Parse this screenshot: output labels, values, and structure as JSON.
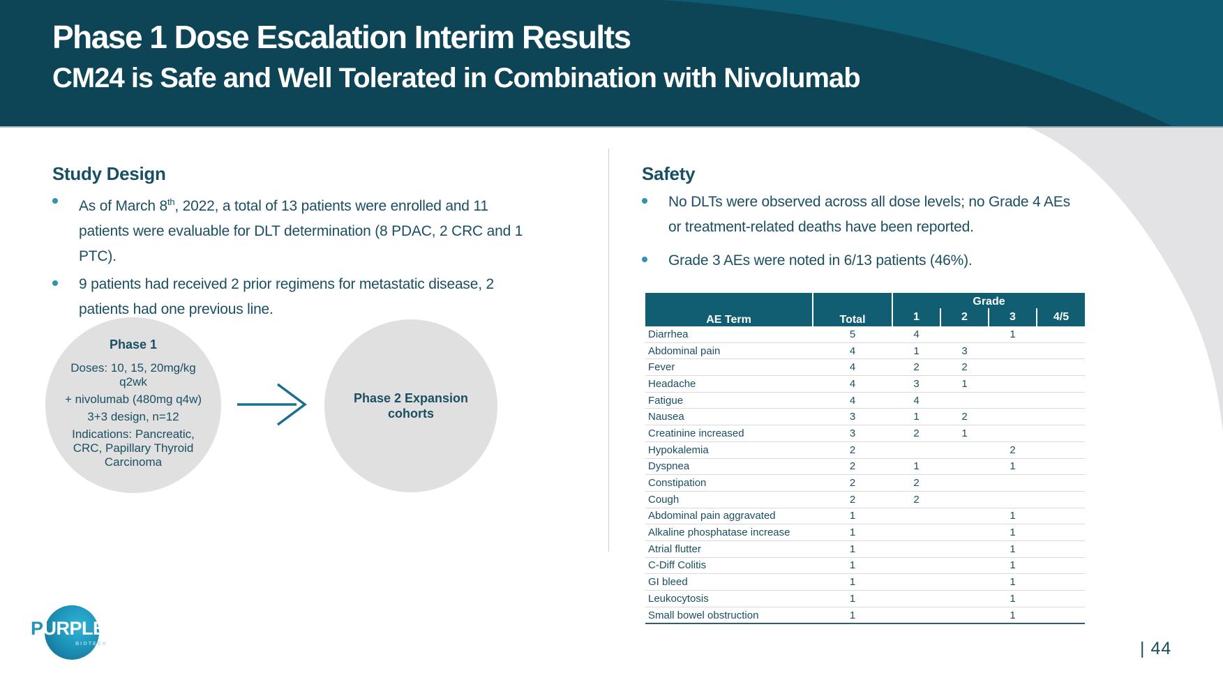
{
  "header": {
    "title": "Phase 1 Dose Escalation Interim Results",
    "subtitle": "CM24 is Safe and Well Tolerated in Combination with Nivolumab"
  },
  "study_design": {
    "heading": "Study Design",
    "bullet1": {
      "pre": "As of March 8",
      "sup": "th",
      "post": ", 2022, a total of 13 patients were enrolled and 11 patients were evaluable for DLT determination (8 PDAC, 2 CRC and 1 PTC)."
    },
    "bullet2": "9 patients had received 2 prior regimens for metastatic disease, 2 patients had one previous line.",
    "diagram": {
      "phase1": {
        "title": "Phase 1",
        "lines": [
          "Doses: 10, 15, 20mg/kg q2wk",
          "+ nivolumab (480mg q4w)",
          "3+3 design, n=12",
          "Indications: Pancreatic, CRC, Papillary Thyroid Carcinoma"
        ]
      },
      "phase2": {
        "title": "Phase 2 Expansion cohorts"
      }
    }
  },
  "safety": {
    "heading": "Safety",
    "bullets": [
      "No DLTs were observed across all dose levels; no Grade 4 AEs or treatment-related deaths have been reported.",
      "Grade 3 AEs were noted in 6/13 patients (46%)."
    ],
    "table": {
      "headers": {
        "ae_term": "AE Term",
        "total": "Total",
        "grade": "Grade",
        "grades": [
          "1",
          "2",
          "3",
          "4/5"
        ]
      },
      "rows": [
        [
          "Diarrhea",
          "5",
          "4",
          "",
          "1",
          ""
        ],
        [
          "Abdominal pain",
          "4",
          "1",
          "3",
          "",
          ""
        ],
        [
          "Fever",
          "4",
          "2",
          "2",
          "",
          ""
        ],
        [
          "Headache",
          "4",
          "3",
          "1",
          "",
          ""
        ],
        [
          "Fatigue",
          "4",
          "4",
          "",
          "",
          ""
        ],
        [
          "Nausea",
          "3",
          "1",
          "2",
          "",
          ""
        ],
        [
          "Creatinine increased",
          "3",
          "2",
          "1",
          "",
          ""
        ],
        [
          "Hypokalemia",
          "2",
          "",
          "",
          "2",
          ""
        ],
        [
          "Dyspnea",
          "2",
          "1",
          "",
          "1",
          ""
        ],
        [
          "Constipation",
          "2",
          "2",
          "",
          "",
          ""
        ],
        [
          "Cough",
          "2",
          "2",
          "",
          "",
          ""
        ],
        [
          "Abdominal pain aggravated",
          "1",
          "",
          "",
          "1",
          ""
        ],
        [
          "Alkaline phosphatase increase",
          "1",
          "",
          "",
          "1",
          ""
        ],
        [
          "Atrial flutter",
          "1",
          "",
          "",
          "1",
          ""
        ],
        [
          "C-Diff Colitis",
          "1",
          "",
          "",
          "1",
          ""
        ],
        [
          "GI bleed",
          "1",
          "",
          "",
          "1",
          ""
        ],
        [
          "Leukocytosis",
          "1",
          "",
          "",
          "1",
          ""
        ],
        [
          "Small bowel obstruction",
          "1",
          "",
          "",
          "1",
          ""
        ]
      ]
    }
  },
  "footer": {
    "logo_text_p": "P",
    "logo_text_rest": "URPLE",
    "logo_subtext": "BIOTECH",
    "page_number": "| 44"
  },
  "colors": {
    "header_dark_teal": "#0d4556",
    "header_light_teal": "#0d5c72",
    "table_header_teal": "#115e72",
    "body_text_teal": "#1a4f61",
    "bullet_dot_teal": "#2f95ac",
    "arrow_teal": "#18708c",
    "background_gray": "#e3e3e5",
    "circle_gray": "#e0e0e0"
  }
}
